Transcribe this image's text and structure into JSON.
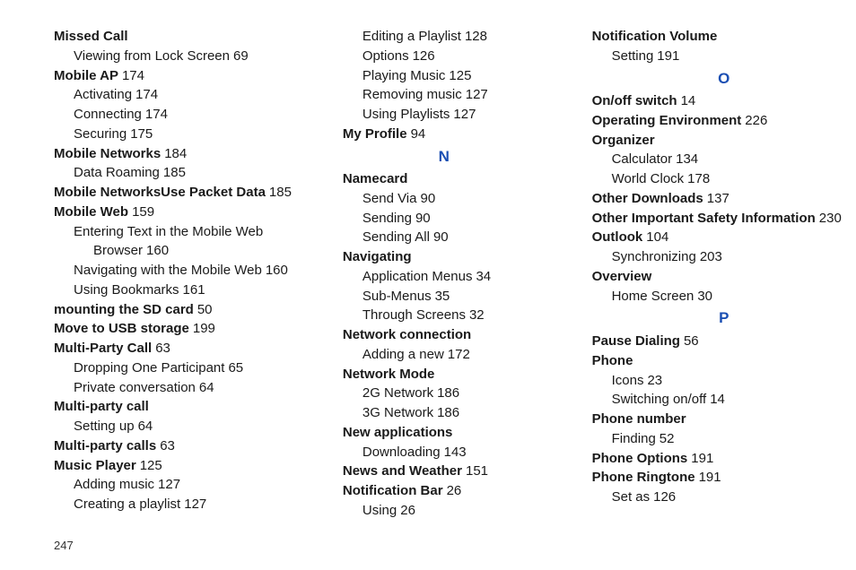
{
  "page_number": "247",
  "colors": {
    "letter": "#1b4fb3",
    "text": "#1a1a1a",
    "background": "#ffffff"
  },
  "columns": [
    [
      {
        "t": "entry",
        "lvl": 0,
        "bold": true,
        "label": "Missed Call"
      },
      {
        "t": "entry",
        "lvl": 1,
        "label": "Viewing from Lock Screen",
        "page": "69"
      },
      {
        "t": "entry",
        "lvl": 0,
        "bold": true,
        "label": "Mobile AP",
        "page": "174"
      },
      {
        "t": "entry",
        "lvl": 1,
        "label": "Activating",
        "page": "174"
      },
      {
        "t": "entry",
        "lvl": 1,
        "label": "Connecting",
        "page": "174"
      },
      {
        "t": "entry",
        "lvl": 1,
        "label": "Securing",
        "page": "175"
      },
      {
        "t": "entry",
        "lvl": 0,
        "bold": true,
        "label": "Mobile Networks",
        "page": "184"
      },
      {
        "t": "entry",
        "lvl": 1,
        "label": "Data Roaming",
        "page": "185"
      },
      {
        "t": "entry",
        "lvl": 0,
        "bold": true,
        "label": "Mobile NetworksUse Packet Data",
        "page": "185"
      },
      {
        "t": "entry",
        "lvl": 0,
        "bold": true,
        "label": "Mobile Web",
        "page": "159"
      },
      {
        "t": "wrap",
        "lvl": 1,
        "label": "Entering Text in the Mobile Web",
        "cont": "Browser",
        "page": "160"
      },
      {
        "t": "entry",
        "lvl": 1,
        "label": "Navigating with the Mobile Web",
        "page": "160"
      },
      {
        "t": "entry",
        "lvl": 1,
        "label": "Using Bookmarks",
        "page": "161"
      },
      {
        "t": "entry",
        "lvl": 0,
        "bold": true,
        "label": "mounting the SD card",
        "page": "50"
      },
      {
        "t": "entry",
        "lvl": 0,
        "bold": true,
        "label": "Move to USB storage",
        "page": "199"
      },
      {
        "t": "entry",
        "lvl": 0,
        "bold": true,
        "label": "Multi-Party Call",
        "page": "63"
      },
      {
        "t": "entry",
        "lvl": 1,
        "label": "Dropping One Participant",
        "page": "65"
      },
      {
        "t": "entry",
        "lvl": 1,
        "label": "Private conversation",
        "page": "64"
      },
      {
        "t": "entry",
        "lvl": 0,
        "bold": true,
        "label": "Multi-party call"
      },
      {
        "t": "entry",
        "lvl": 1,
        "label": "Setting up",
        "page": "64"
      },
      {
        "t": "entry",
        "lvl": 0,
        "bold": true,
        "label": "Multi-party calls",
        "page": "63"
      },
      {
        "t": "entry",
        "lvl": 0,
        "bold": true,
        "label": "Music Player",
        "page": "125"
      },
      {
        "t": "entry",
        "lvl": 1,
        "label": "Adding music",
        "page": "127"
      },
      {
        "t": "entry",
        "lvl": 1,
        "label": "Creating a playlist",
        "page": "127"
      }
    ],
    [
      {
        "t": "entry",
        "lvl": 1,
        "label": "Editing a Playlist",
        "page": "128"
      },
      {
        "t": "entry",
        "lvl": 1,
        "label": "Options",
        "page": "126"
      },
      {
        "t": "entry",
        "lvl": 1,
        "label": "Playing Music",
        "page": "125"
      },
      {
        "t": "entry",
        "lvl": 1,
        "label": "Removing music",
        "page": "127"
      },
      {
        "t": "entry",
        "lvl": 1,
        "label": "Using Playlists",
        "page": "127"
      },
      {
        "t": "entry",
        "lvl": 0,
        "bold": true,
        "label": "My Profile",
        "page": "94"
      },
      {
        "t": "letter",
        "label": "N"
      },
      {
        "t": "entry",
        "lvl": 0,
        "bold": true,
        "label": "Namecard"
      },
      {
        "t": "entry",
        "lvl": 1,
        "label": "Send Via",
        "page": "90"
      },
      {
        "t": "entry",
        "lvl": 1,
        "label": "Sending",
        "page": "90"
      },
      {
        "t": "entry",
        "lvl": 1,
        "label": "Sending All",
        "page": "90"
      },
      {
        "t": "entry",
        "lvl": 0,
        "bold": true,
        "label": "Navigating"
      },
      {
        "t": "entry",
        "lvl": 1,
        "label": "Application Menus",
        "page": "34"
      },
      {
        "t": "entry",
        "lvl": 1,
        "label": "Sub-Menus",
        "page": "35"
      },
      {
        "t": "entry",
        "lvl": 1,
        "label": "Through Screens",
        "page": "32"
      },
      {
        "t": "entry",
        "lvl": 0,
        "bold": true,
        "label": "Network connection"
      },
      {
        "t": "entry",
        "lvl": 1,
        "label": "Adding a new",
        "page": "172"
      },
      {
        "t": "entry",
        "lvl": 0,
        "bold": true,
        "label": "Network Mode"
      },
      {
        "t": "entry",
        "lvl": 1,
        "label": "2G Network",
        "page": "186"
      },
      {
        "t": "entry",
        "lvl": 1,
        "label": "3G Network",
        "page": "186"
      },
      {
        "t": "entry",
        "lvl": 0,
        "bold": true,
        "label": "New applications"
      },
      {
        "t": "entry",
        "lvl": 1,
        "label": "Downloading",
        "page": "143"
      },
      {
        "t": "entry",
        "lvl": 0,
        "bold": true,
        "label": "News and Weather",
        "page": "151"
      },
      {
        "t": "entry",
        "lvl": 0,
        "bold": true,
        "label": "Notification Bar",
        "page": "26"
      },
      {
        "t": "entry",
        "lvl": 1,
        "label": "Using",
        "page": "26"
      }
    ],
    [
      {
        "t": "entry",
        "lvl": 0,
        "bold": true,
        "label": "Notification Volume"
      },
      {
        "t": "entry",
        "lvl": 1,
        "label": "Setting",
        "page": "191"
      },
      {
        "t": "letter",
        "label": "O"
      },
      {
        "t": "entry",
        "lvl": 0,
        "bold": true,
        "label": "On/off switch",
        "page": "14"
      },
      {
        "t": "entry",
        "lvl": 0,
        "bold": true,
        "label": "Operating Environment",
        "page": "226"
      },
      {
        "t": "entry",
        "lvl": 0,
        "bold": true,
        "label": "Organizer"
      },
      {
        "t": "entry",
        "lvl": 1,
        "label": "Calculator",
        "page": "134"
      },
      {
        "t": "entry",
        "lvl": 1,
        "label": "World Clock",
        "page": "178"
      },
      {
        "t": "entry",
        "lvl": 0,
        "bold": true,
        "label": "Other Downloads",
        "page": "137"
      },
      {
        "t": "entry",
        "lvl": 0,
        "bold": true,
        "label": "Other Important Safety Information",
        "page": "230"
      },
      {
        "t": "entry",
        "lvl": 0,
        "bold": true,
        "label": "Outlook",
        "page": "104"
      },
      {
        "t": "entry",
        "lvl": 1,
        "label": "Synchronizing",
        "page": "203"
      },
      {
        "t": "entry",
        "lvl": 0,
        "bold": true,
        "label": "Overview"
      },
      {
        "t": "entry",
        "lvl": 1,
        "label": "Home Screen",
        "page": "30"
      },
      {
        "t": "letter",
        "label": "P"
      },
      {
        "t": "entry",
        "lvl": 0,
        "bold": true,
        "label": "Pause Dialing",
        "page": "56"
      },
      {
        "t": "entry",
        "lvl": 0,
        "bold": true,
        "label": "Phone"
      },
      {
        "t": "entry",
        "lvl": 1,
        "label": "Icons",
        "page": "23"
      },
      {
        "t": "entry",
        "lvl": 1,
        "label": "Switching on/off",
        "page": "14"
      },
      {
        "t": "entry",
        "lvl": 0,
        "bold": true,
        "label": "Phone number"
      },
      {
        "t": "entry",
        "lvl": 1,
        "label": "Finding",
        "page": "52"
      },
      {
        "t": "entry",
        "lvl": 0,
        "bold": true,
        "label": "Phone Options",
        "page": "191"
      },
      {
        "t": "entry",
        "lvl": 0,
        "bold": true,
        "label": "Phone Ringtone",
        "page": "191"
      },
      {
        "t": "entry",
        "lvl": 1,
        "label": "Set as",
        "page": "126"
      }
    ]
  ]
}
